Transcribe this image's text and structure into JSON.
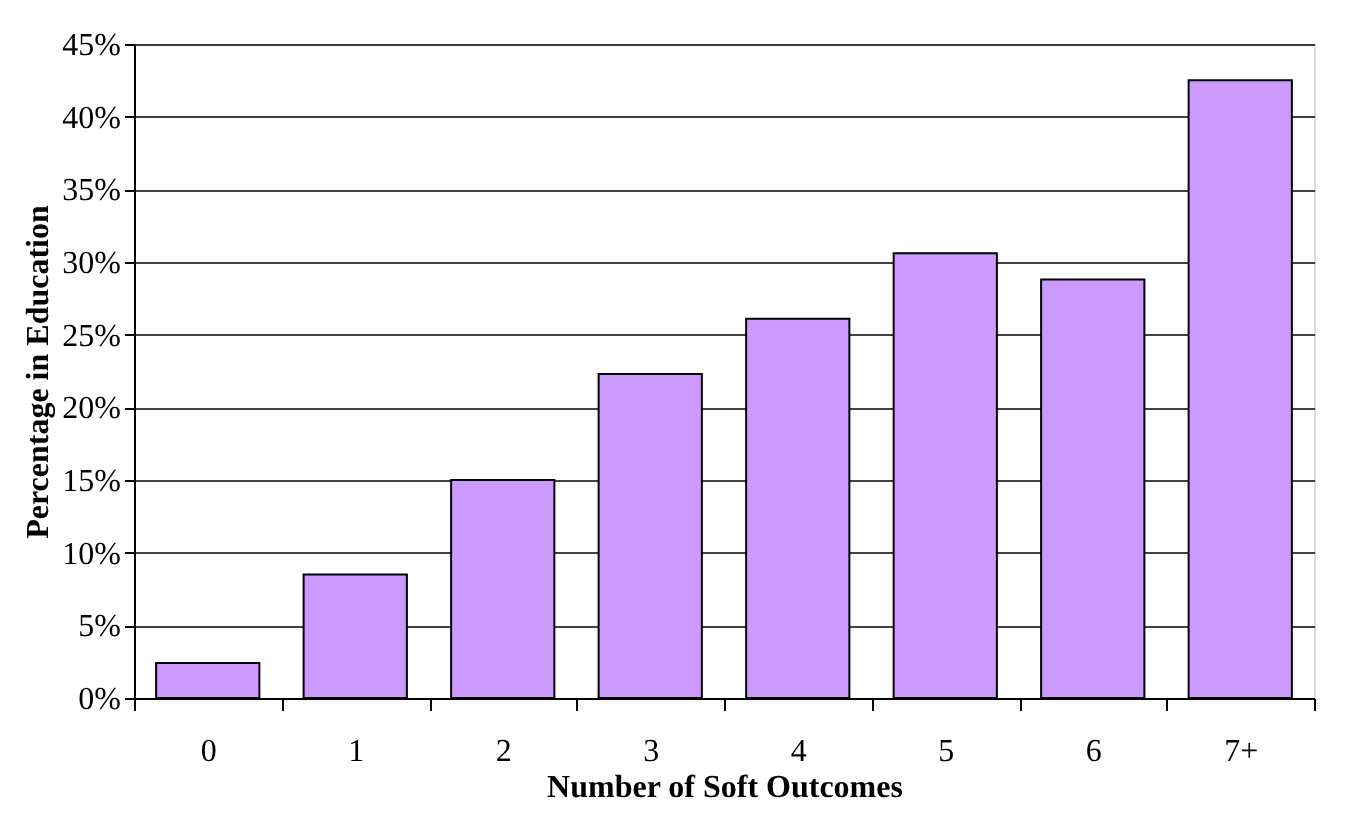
{
  "chart_data": {
    "type": "bar",
    "xlabel": "Number of Soft Outcomes",
    "ylabel": "Percentage in Education",
    "categories": [
      "0",
      "1",
      "2",
      "3",
      "4",
      "5",
      "6",
      "7+"
    ],
    "series": [
      {
        "color": "#cc99ff",
        "values": [
          2.4,
          8.5,
          15.0,
          22.3,
          26.1,
          30.6,
          28.8,
          42.5
        ]
      }
    ],
    "ylim": [
      0,
      45
    ],
    "yticks": [
      {
        "value": 0,
        "label": "0%"
      },
      {
        "value": 5,
        "label": "5%"
      },
      {
        "value": 10,
        "label": "10%"
      },
      {
        "value": 15,
        "label": "15%"
      },
      {
        "value": 20,
        "label": "20%"
      },
      {
        "value": 25,
        "label": "25%"
      },
      {
        "value": 30,
        "label": "30%"
      },
      {
        "value": 35,
        "label": "35%"
      },
      {
        "value": 40,
        "label": "40%"
      },
      {
        "value": 45,
        "label": "45%"
      }
    ],
    "grid": "y",
    "legend": false
  }
}
